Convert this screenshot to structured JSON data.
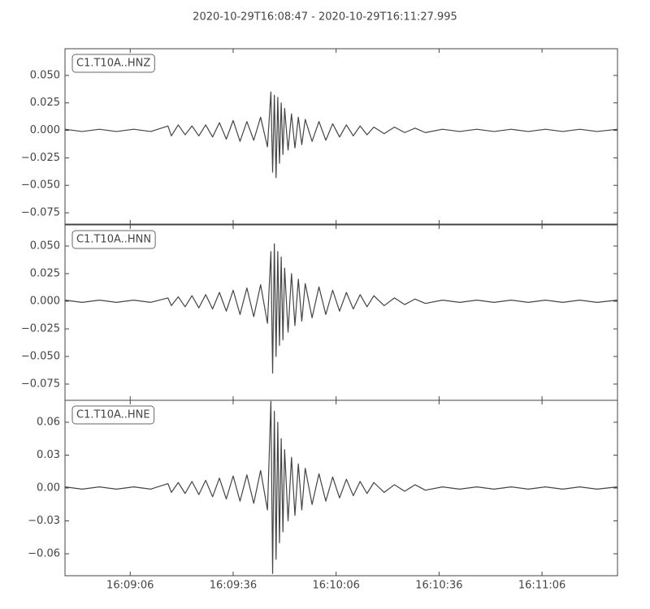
{
  "chart_data": [
    {
      "type": "line",
      "title": "2020-10-29T16:08:47  -  2020-10-29T16:11:27.995",
      "x": [
        0,
        5,
        10,
        15,
        20,
        25,
        30,
        31,
        33,
        35,
        37,
        39,
        41,
        43,
        45,
        47,
        49,
        51,
        53,
        55,
        57,
        59,
        60,
        60.5,
        61,
        61.5,
        62,
        62.5,
        63,
        63.5,
        64,
        65,
        66,
        67,
        68,
        69,
        70,
        72,
        74,
        76,
        78,
        80,
        82,
        84,
        86,
        88,
        90,
        93,
        96,
        99,
        102,
        105,
        110,
        115,
        120,
        125,
        130,
        135,
        140,
        145,
        150,
        155,
        160.995
      ],
      "series": [
        {
          "name": "C1.T10A..HNZ",
          "color": "#444444",
          "values": [
            0.001,
            -0.001,
            0.001,
            -0.001,
            0.001,
            -0.001,
            0.004,
            -0.005,
            0.005,
            -0.004,
            0.004,
            -0.005,
            0.005,
            -0.006,
            0.007,
            -0.008,
            0.009,
            -0.01,
            0.008,
            -0.009,
            0.012,
            -0.015,
            0.035,
            -0.038,
            0.032,
            -0.043,
            0.03,
            -0.03,
            0.025,
            -0.022,
            0.02,
            -0.018,
            0.015,
            -0.016,
            0.012,
            -0.013,
            0.01,
            -0.01,
            0.008,
            -0.009,
            0.006,
            -0.006,
            0.005,
            -0.005,
            0.004,
            -0.004,
            0.003,
            -0.003,
            0.003,
            -0.002,
            0.002,
            -0.002,
            0.001,
            -0.001,
            0.001,
            -0.001,
            0.001,
            -0.001,
            0.001,
            -0.001,
            0.001,
            -0.001,
            0.001
          ]
        }
      ],
      "xlim": [
        0,
        160.995
      ],
      "ylim": [
        -0.0853,
        0.0743
      ],
      "yticks": [
        {
          "value": -0.075,
          "label": "−0.075"
        },
        {
          "value": -0.05,
          "label": "−0.050"
        },
        {
          "value": -0.025,
          "label": "−0.025"
        },
        {
          "value": 0,
          "label": "0.000"
        },
        {
          "value": 0.025,
          "label": "0.025"
        },
        {
          "value": 0.05,
          "label": "0.050"
        }
      ]
    },
    {
      "type": "line",
      "x": [
        0,
        5,
        10,
        15,
        20,
        25,
        30,
        31,
        33,
        35,
        37,
        39,
        41,
        43,
        45,
        47,
        49,
        51,
        53,
        55,
        57,
        59,
        60,
        60.5,
        61,
        61.5,
        62,
        62.5,
        63,
        63.5,
        64,
        65,
        66,
        67,
        68,
        69,
        70,
        72,
        74,
        76,
        78,
        80,
        82,
        84,
        86,
        88,
        90,
        93,
        96,
        99,
        102,
        105,
        110,
        115,
        120,
        125,
        130,
        135,
        140,
        145,
        150,
        155,
        160.995
      ],
      "series": [
        {
          "name": "C1.T10A..HNN",
          "color": "#444444",
          "values": [
            0.001,
            -0.001,
            0.001,
            -0.001,
            0.001,
            -0.001,
            0.003,
            -0.004,
            0.004,
            -0.005,
            0.005,
            -0.006,
            0.006,
            -0.007,
            0.008,
            -0.009,
            0.01,
            -0.012,
            0.012,
            -0.014,
            0.015,
            -0.02,
            0.045,
            -0.065,
            0.052,
            -0.05,
            0.045,
            -0.04,
            0.04,
            -0.035,
            0.03,
            -0.028,
            0.025,
            -0.022,
            0.02,
            -0.018,
            0.016,
            -0.015,
            0.013,
            -0.012,
            0.01,
            -0.009,
            0.008,
            -0.007,
            0.006,
            -0.005,
            0.005,
            -0.004,
            0.003,
            -0.003,
            0.002,
            -0.002,
            0.001,
            -0.001,
            0.001,
            -0.001,
            0.001,
            -0.001,
            0.001,
            -0.001,
            0.001,
            -0.001,
            0.001
          ]
        }
      ],
      "xlim": [
        0,
        160.995
      ],
      "ylim": [
        -0.0897,
        0.0691
      ],
      "yticks": [
        {
          "value": -0.075,
          "label": "−0.075"
        },
        {
          "value": -0.05,
          "label": "−0.050"
        },
        {
          "value": -0.025,
          "label": "−0.025"
        },
        {
          "value": 0,
          "label": "0.000"
        },
        {
          "value": 0.025,
          "label": "0.025"
        },
        {
          "value": 0.05,
          "label": "0.050"
        }
      ]
    },
    {
      "type": "line",
      "x": [
        0,
        5,
        10,
        15,
        20,
        25,
        30,
        31,
        33,
        35,
        37,
        39,
        41,
        43,
        45,
        47,
        49,
        51,
        53,
        55,
        57,
        59,
        60,
        60.5,
        61,
        61.5,
        62,
        62.5,
        63,
        63.5,
        64,
        65,
        66,
        67,
        68,
        69,
        70,
        72,
        74,
        76,
        78,
        80,
        82,
        84,
        86,
        88,
        90,
        93,
        96,
        99,
        102,
        105,
        110,
        115,
        120,
        125,
        130,
        135,
        140,
        145,
        150,
        155,
        160.995
      ],
      "series": [
        {
          "name": "C1.T10A..HNE",
          "color": "#444444",
          "values": [
            0.001,
            -0.001,
            0.001,
            -0.001,
            0.001,
            -0.001,
            0.004,
            -0.004,
            0.005,
            -0.005,
            0.006,
            -0.006,
            0.007,
            -0.008,
            0.009,
            -0.01,
            0.011,
            -0.012,
            0.012,
            -0.014,
            0.016,
            -0.02,
            0.079,
            -0.078,
            0.07,
            -0.065,
            0.06,
            -0.05,
            0.045,
            -0.04,
            0.035,
            -0.03,
            0.028,
            -0.025,
            0.022,
            -0.02,
            0.018,
            -0.015,
            0.013,
            -0.012,
            0.01,
            -0.009,
            0.008,
            -0.007,
            0.006,
            -0.005,
            0.005,
            -0.004,
            0.003,
            -0.003,
            0.003,
            -0.002,
            0.001,
            -0.001,
            0.001,
            -0.001,
            0.001,
            -0.001,
            0.001,
            -0.001,
            0.001,
            -0.001,
            0.001
          ]
        }
      ],
      "xlim": [
        0,
        160.995
      ],
      "ylim": [
        -0.08,
        0.08
      ],
      "yticks": [
        {
          "value": -0.06,
          "label": "−0.06"
        },
        {
          "value": -0.03,
          "label": "−0.03"
        },
        {
          "value": 0,
          "label": "0.00"
        },
        {
          "value": 0.03,
          "label": "0.03"
        },
        {
          "value": 0.06,
          "label": "0.06"
        }
      ],
      "xticks": [
        {
          "value": 19,
          "label": "16:09:06"
        },
        {
          "value": 49,
          "label": "16:09:36"
        },
        {
          "value": 79,
          "label": "16:10:06"
        },
        {
          "value": 109,
          "label": "16:10:36"
        },
        {
          "value": 139,
          "label": "16:11:06"
        }
      ]
    }
  ]
}
